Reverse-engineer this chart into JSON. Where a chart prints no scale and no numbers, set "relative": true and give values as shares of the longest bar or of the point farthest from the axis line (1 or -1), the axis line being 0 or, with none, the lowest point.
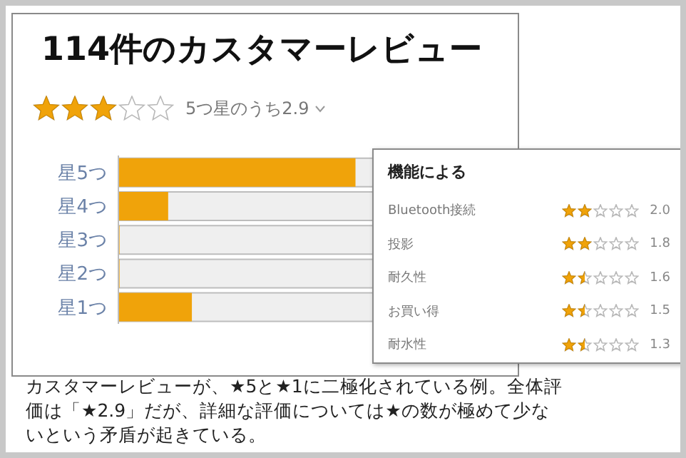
{
  "chart_data": [
    {
      "type": "bar",
      "orientation": "horizontal",
      "relative": true,
      "title": "114件のカスタマーレビュー",
      "subtitle": "5つ星のうち2.9",
      "categories": [
        "星5つ",
        "星4つ",
        "星3つ",
        "星2つ",
        "星1つ"
      ],
      "values": [
        1,
        0.21,
        0.005,
        0.005,
        0.31
      ],
      "color": "#f0a30a",
      "annotations": [
        "カスタマーレビューが、★5と★1に二極化されている例。全体評価は「★2.9」だが、詳細な評価については★の数が極めて少ないという矛盾が起きている。"
      ]
    },
    {
      "type": "other",
      "title": "機能による",
      "categories": [
        "Bluetooth接続",
        "投影",
        "耐久性",
        "お買い得",
        "耐水性"
      ],
      "values": [
        2.0,
        1.8,
        1.6,
        1.5,
        1.3
      ],
      "value_labels": [
        "2.0",
        "1.8",
        "1.6",
        "1.5",
        "1.3"
      ]
    }
  ]
}
